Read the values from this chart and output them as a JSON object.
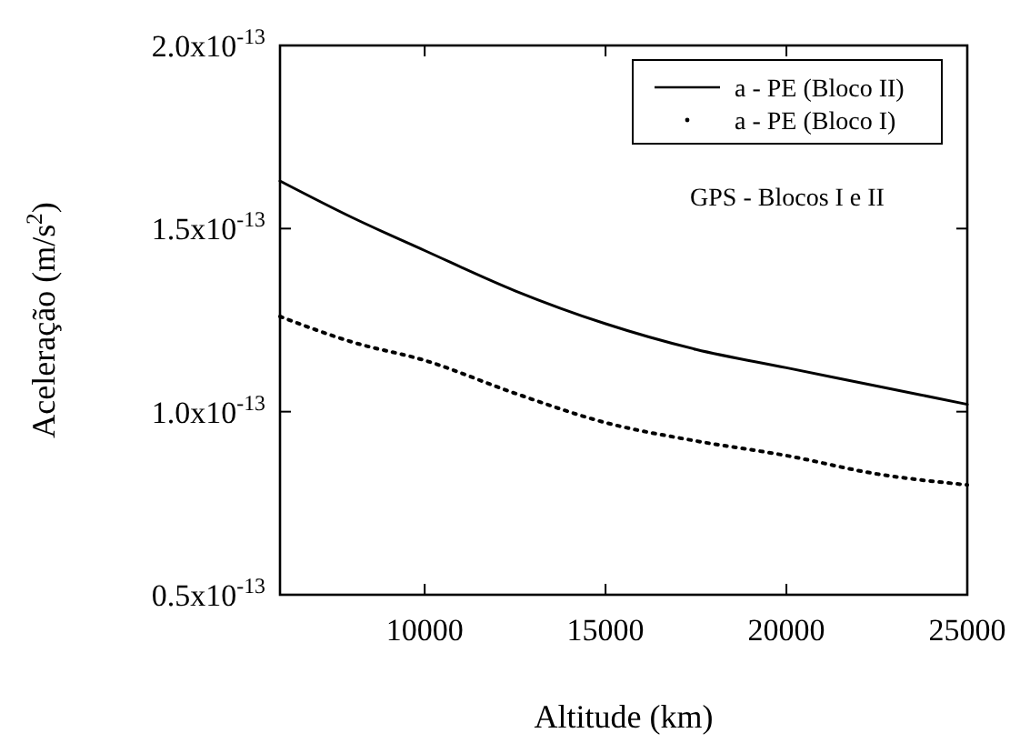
{
  "chart_data": {
    "type": "line",
    "xlabel": "Altitude (km)",
    "ylabel": "Aceleração (m/s$^{2}$)",
    "x": [
      6000,
      8000,
      10000,
      12500,
      15000,
      17500,
      20000,
      22500,
      25000
    ],
    "series": [
      {
        "name": "a - PE (Bloco II)",
        "color": "#000000",
        "line_style": "solid",
        "values": [
          1.63e-13,
          1.53e-13,
          1.44e-13,
          1.33e-13,
          1.24e-13,
          1.17e-13,
          1.12e-13,
          1.07e-13,
          1.02e-13
        ]
      },
      {
        "name": "a - PE (Bloco I)",
        "color": "#000000",
        "line_style": "dotted",
        "values": [
          1.26e-13,
          1.19e-13,
          1.14e-13,
          1.05e-13,
          9.7e-14,
          9.2e-14,
          8.8e-14,
          8.3e-14,
          8e-14
        ]
      }
    ],
    "xlim": [
      6000,
      25000
    ],
    "xticks": [
      10000,
      15000,
      20000,
      25000
    ],
    "ylim": [
      5e-14,
      2e-13
    ],
    "yticks": [
      {
        "value": 5e-14,
        "label": "0.5x10$^{-13}$"
      },
      {
        "value": 1e-13,
        "label": "1.0x10$^{-13}$"
      },
      {
        "value": 1.5e-13,
        "label": "1.5x10$^{-13}$"
      },
      {
        "value": 2e-13,
        "label": "2.0x10$^{-13}$"
      }
    ],
    "annotations": [
      "GPS - Blocos I e II"
    ],
    "legend": "top right",
    "grid": false
  }
}
